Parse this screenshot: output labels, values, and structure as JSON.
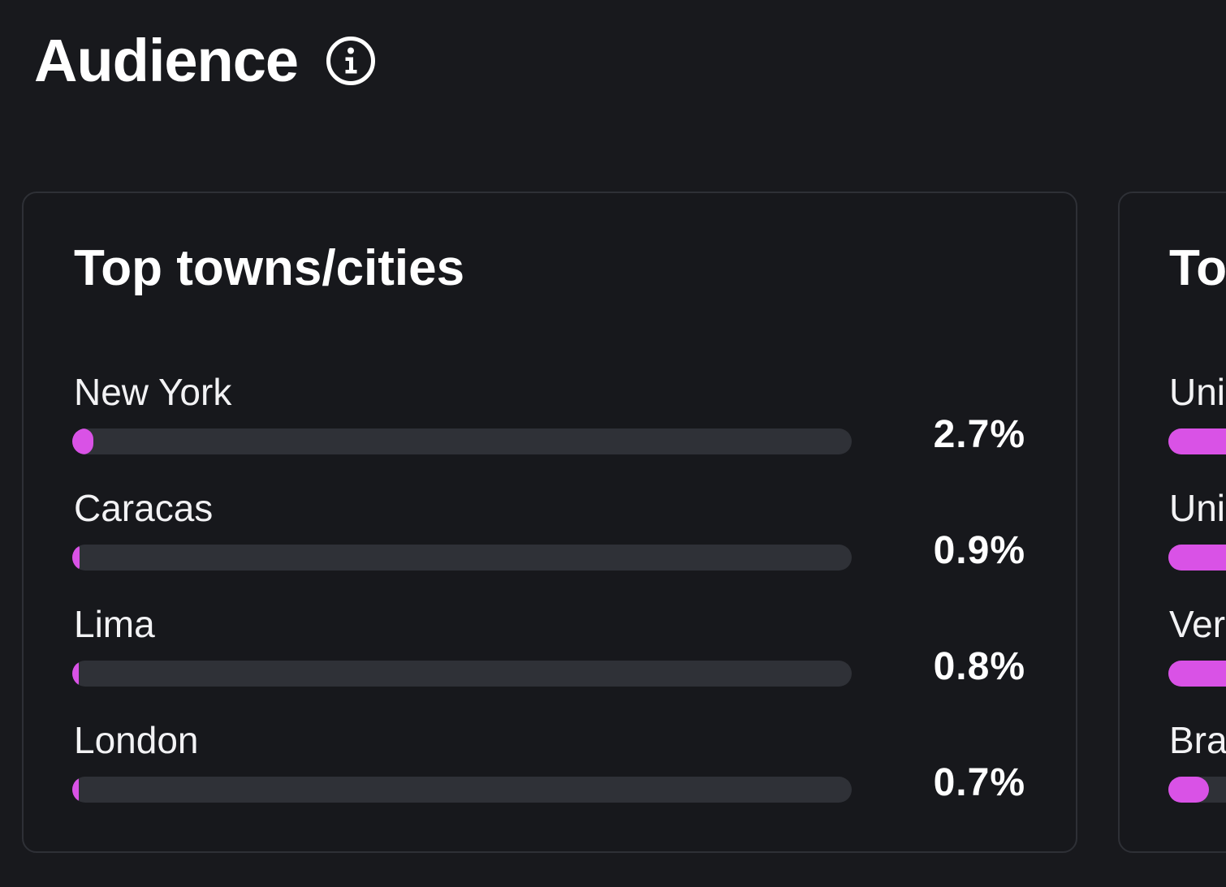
{
  "header": {
    "title": "Audience",
    "info_icon": "info-icon"
  },
  "colors": {
    "background": "#18191d",
    "card_border": "#2e3036",
    "bar_track": "#2f3137",
    "bar_fill": "#d952e6",
    "text": "#ffffff"
  },
  "cards": [
    {
      "title": "Top towns/cities",
      "bar_scale_max_percent": 100,
      "rows": [
        {
          "label": "New York",
          "value": "2.7%",
          "percent": 2.7
        },
        {
          "label": "Caracas",
          "value": "0.9%",
          "percent": 0.9
        },
        {
          "label": "Lima",
          "value": "0.8%",
          "percent": 0.8
        },
        {
          "label": "London",
          "value": "0.7%",
          "percent": 0.7
        }
      ]
    },
    {
      "title": "To",
      "rows": [
        {
          "label": "Uni",
          "fill_fraction": 1.0
        },
        {
          "label": "Uni",
          "fill_fraction": 1.0
        },
        {
          "label": "Ver",
          "fill_fraction": 1.0
        },
        {
          "label": "Bra",
          "fill_fraction": 0.125
        }
      ]
    }
  ]
}
